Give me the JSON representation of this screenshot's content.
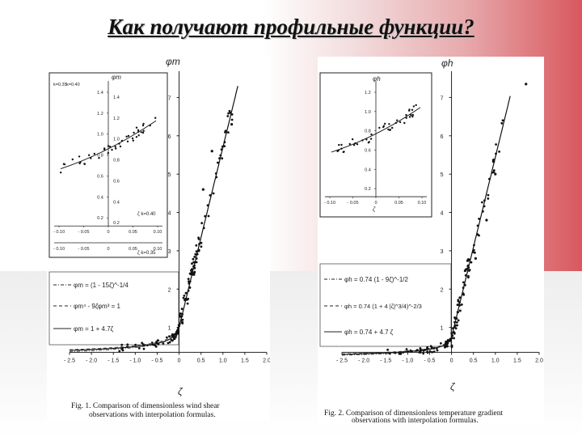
{
  "slide": {
    "title": "Как получают профильные функции?"
  },
  "chart_data": [
    {
      "type": "scatter",
      "figure": "left",
      "caption_line1": "Fig. 1. Comparison of dimensionless wind shear",
      "caption_line2": "observations with interpolation formulas.",
      "ylabel": "φm",
      "xlabel": "ζ",
      "xlim": [
        -2.5,
        2.0
      ],
      "ylim": [
        0,
        7.5
      ],
      "xticks": [
        "- 2.5",
        "- 2.0",
        "- 1.5",
        "- 1.0",
        "- 0.5",
        "0",
        "0.5",
        "1.0",
        "1.5",
        "2.0"
      ],
      "yticks": [
        "1",
        "2",
        "3",
        "4",
        "5",
        "6",
        "7"
      ],
      "legend": [
        {
          "style": "dashdot",
          "label": "φm = (1 - 15ζ)^-1/4"
        },
        {
          "style": "dashed",
          "label": "φm⁴ - 9ζφm³ = 1"
        },
        {
          "style": "solid",
          "label": "φm = 1 + 4.7ζ"
        }
      ],
      "inset": {
        "ylabel": "φm",
        "xlabel_bottom": "ζ k=0.35",
        "xlabel_top": "ζ k=0.40",
        "corner_labels": [
          "k=0.35",
          "k=0.40"
        ],
        "yticks_a": [
          "1.4",
          "1.2",
          "1.0",
          "0.8",
          "0.6",
          "0.4",
          "0.2"
        ],
        "yticks_b": [
          "1.4",
          "1.2",
          "1.0",
          "0.8",
          "0.6",
          "0.4",
          "0.2"
        ],
        "xticks_top": [
          "- 0.10",
          "- 0.05",
          "0",
          "0.05",
          "0.10"
        ],
        "xticks_bottom": [
          "- 0.10",
          "- 0.05",
          "0",
          "0.05",
          "0.10"
        ]
      }
    },
    {
      "type": "scatter",
      "figure": "right",
      "caption_line1": "Fig. 2. Comparison of dimensionless temperature gradient",
      "caption_line2": "observations with interpolation formulas.",
      "ylabel": "φh",
      "xlabel": "ζ",
      "xlim": [
        -2.5,
        2.0
      ],
      "ylim": [
        0,
        7.5
      ],
      "xticks": [
        "- 2.5",
        "- 2.0",
        "- 1.5",
        "- 1.0",
        "- 0.5",
        "0",
        "0.5",
        "1.0",
        "1.5",
        "2.0"
      ],
      "yticks": [
        "1",
        "2",
        "3",
        "4",
        "5",
        "6",
        "7"
      ],
      "legend": [
        {
          "style": "dashdot",
          "label": "φh = 0.74 (1 - 9ζ)^-1/2"
        },
        {
          "style": "dashed",
          "label": "φh = 0.74 (1 + 4 |ζ|^3/4)^-2/3"
        },
        {
          "style": "solid",
          "label": "φh = 0.74 + 4.7 ζ"
        }
      ],
      "inset": {
        "ylabel": "φh",
        "xlabel": "ζ",
        "yticks": [
          "1.2",
          "1.0",
          "0.8",
          "0.6",
          "0.4",
          "0.2"
        ],
        "xticks": [
          "- 0.10",
          "- 0.05",
          "0",
          "0.05",
          "0.10"
        ]
      }
    }
  ]
}
